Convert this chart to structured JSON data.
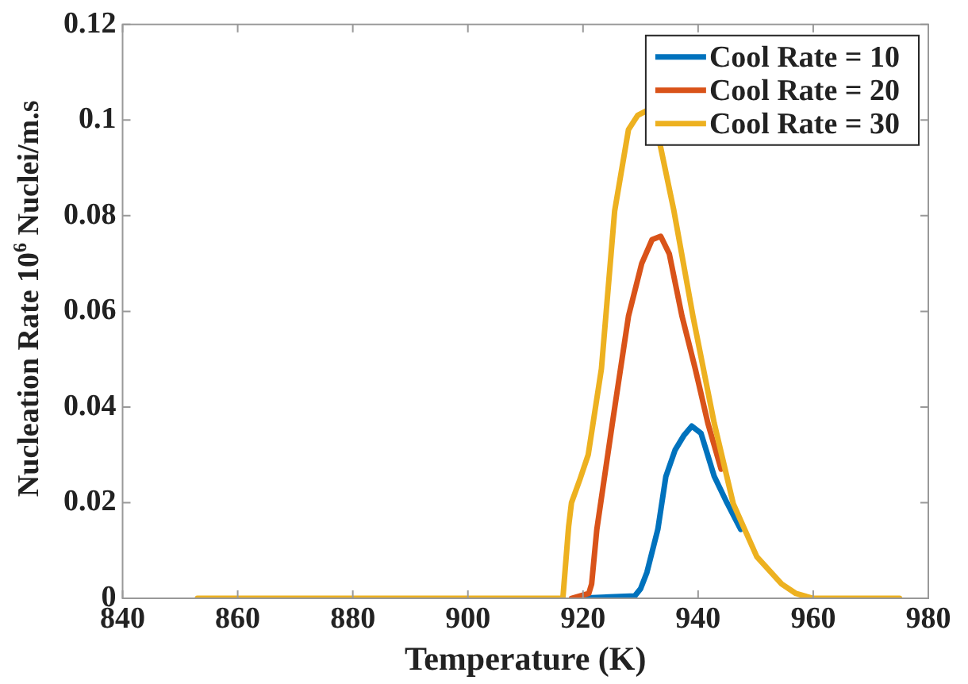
{
  "chart_data": {
    "type": "line",
    "xlabel": "Temperature (K)",
    "ylabel": "Nucleation Rate 10$^{6}$ Nuclei/m.s",
    "xlim": [
      840,
      980
    ],
    "xticks": [
      840,
      860,
      880,
      900,
      920,
      940,
      960,
      980
    ],
    "ylim": [
      0,
      0.12
    ],
    "yticks": [
      0,
      0.02,
      0.04,
      0.06,
      0.08,
      0.1,
      0.12
    ],
    "grid": false,
    "legend": "top right",
    "marker": "none",
    "line_style": "solid",
    "series": [
      {
        "name": "Cool Rate = 10",
        "color": "#0072bd",
        "x": [
          919,
          929,
          930,
          931.1,
          933,
          934.4,
          936,
          937.5,
          938.9,
          940.5,
          942.8,
          945,
          947.4
        ],
        "values": [
          0,
          0.0005,
          0.002,
          0.0054,
          0.0144,
          0.0255,
          0.031,
          0.034,
          0.036,
          0.0345,
          0.0255,
          0.02,
          0.0144
        ]
      },
      {
        "name": "Cool Rate = 20",
        "color": "#d95319",
        "x": [
          918,
          921,
          921.5,
          922.4,
          925.1,
          927.9,
          930.2,
          932,
          933.5,
          935,
          937.2,
          939.5,
          941.7,
          944
        ],
        "values": [
          0,
          0.001,
          0.003,
          0.0144,
          0.0366,
          0.059,
          0.07,
          0.075,
          0.0757,
          0.072,
          0.059,
          0.048,
          0.0366,
          0.027
        ]
      },
      {
        "name": "Cool Rate = 30",
        "color": "#edb120",
        "x": [
          853,
          916.5,
          917.5,
          918,
          919.5,
          920.9,
          923.2,
          925.5,
          927.9,
          929.5,
          931.1,
          932.5,
          935.8,
          939.1,
          942.8,
          946.1,
          950.2,
          954.5,
          957,
          960,
          965,
          975
        ],
        "values": [
          0,
          0,
          0.015,
          0.02,
          0.025,
          0.03,
          0.048,
          0.081,
          0.098,
          0.101,
          0.102,
          0.1,
          0.081,
          0.059,
          0.0366,
          0.0198,
          0.0087,
          0.003,
          0.001,
          0,
          0,
          0
        ]
      }
    ]
  }
}
